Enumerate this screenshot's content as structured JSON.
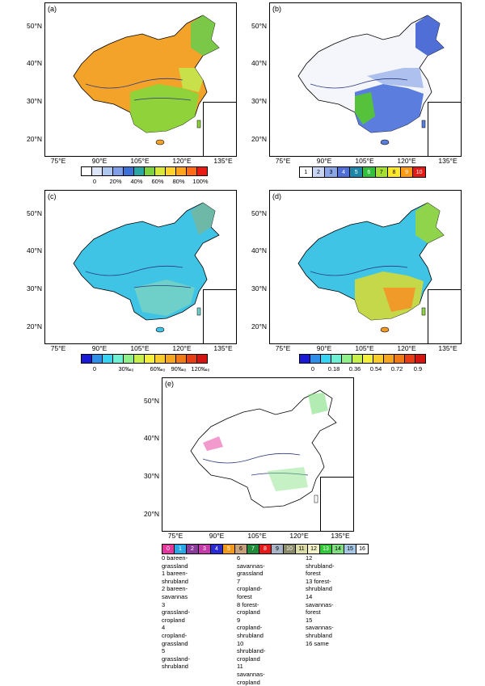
{
  "panels": [
    {
      "id": "a",
      "label": "(a)",
      "theme": "percent"
    },
    {
      "id": "b",
      "label": "(b)",
      "theme": "class10"
    },
    {
      "id": "c",
      "label": "(c)",
      "theme": "permille"
    },
    {
      "id": "d",
      "label": "(d)",
      "theme": "fraction"
    },
    {
      "id": "e",
      "label": "(e)",
      "theme": "change"
    }
  ],
  "axes": {
    "lat_labels": [
      "50°N",
      "40°N",
      "30°N",
      "20°N"
    ],
    "lon_labels": [
      "75°E",
      "90°E",
      "105°E",
      "120°E",
      "135°E"
    ]
  },
  "colorbar_a": {
    "colors": [
      "#ffffff",
      "#dbe6f6",
      "#aec7ef",
      "#7f9fe6",
      "#3d6fd8",
      "#2aa7a2",
      "#7bd23c",
      "#d8e83a",
      "#ffd22a",
      "#ffa31a",
      "#ff6a14",
      "#e81c14"
    ],
    "ticks": [
      "0",
      "20%",
      "40%",
      "60%",
      "80%",
      "100%"
    ]
  },
  "colorbar_b": {
    "colors": [
      "#ffffff",
      "#c8d6f4",
      "#8aa6e6",
      "#4f6fd6",
      "#1e86a8",
      "#31c13b",
      "#a6e02f",
      "#ffe82a",
      "#ff9a16",
      "#e41b16"
    ],
    "labels": [
      "1",
      "2",
      "3",
      "4",
      "5",
      "6",
      "7",
      "8",
      "9",
      "10"
    ]
  },
  "colorbar_c": {
    "colors": [
      "#1a1ad6",
      "#2f8fe8",
      "#36d4f4",
      "#6ef0d4",
      "#8ff08a",
      "#c7f04a",
      "#f4f03a",
      "#f8cc2a",
      "#f6a61c",
      "#f07a16",
      "#e83c14",
      "#d41410"
    ],
    "ticks": [
      "0",
      "30‰₀",
      "60‰₀",
      "90‰₀",
      "120‰₀"
    ]
  },
  "colorbar_d": {
    "colors": [
      "#1a1ad6",
      "#2f8fe8",
      "#36d4f4",
      "#6ef0d4",
      "#8ff08a",
      "#c7f04a",
      "#f4f03a",
      "#f8cc2a",
      "#f6a61c",
      "#f07a16",
      "#e83c14",
      "#d41410"
    ],
    "ticks": [
      "0",
      "0.18",
      "0.36",
      "0.54",
      "0.72",
      "0.9"
    ]
  },
  "colorbar_e": {
    "colors": [
      "#e6359c",
      "#2aa8e6",
      "#8a3a9a",
      "#c43aa8",
      "#2a2ad6",
      "#f29a1e",
      "#c8a07a",
      "#1e8a3a",
      "#e61a1a",
      "#a8b4c8",
      "#8a8a6a",
      "#dcdca6",
      "#f4f4c8",
      "#33c83a",
      "#7ee07e",
      "#a8c8e8",
      "#ffffff"
    ],
    "labels": [
      "0",
      "1",
      "2",
      "3",
      "4",
      "5",
      "6",
      "7",
      "8",
      "9",
      "10",
      "11",
      "12",
      "13",
      "14",
      "15",
      "16"
    ]
  },
  "legend_e": [
    "0 bareen-grassland",
    "1 bareen-shrubland",
    "2 bareen-savannas",
    "3 grassland-cropland",
    "4 cropland-grassland",
    "5 grassland-shrubland",
    "6 savannas-grassland",
    "7 cropland-forest",
    "8 forest-cropland",
    "9 cropland-shrubland",
    "10 shrubland-cropland",
    "11 savannas-cropland",
    "12 shrubland-forest",
    "13 forest-shrubland",
    "14 savannas-forest",
    "15 savannas-shrubland",
    "16 same"
  ]
}
